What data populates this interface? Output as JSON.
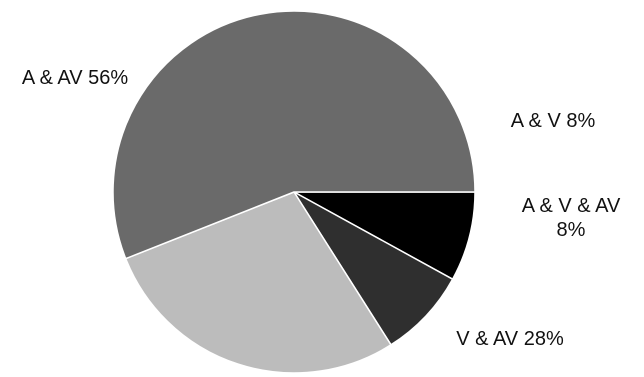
{
  "chart_data": {
    "type": "pie",
    "categories": [
      "A & V",
      "A & V & AV",
      "V & AV",
      "A & AV"
    ],
    "values": [
      8,
      8,
      28,
      56
    ],
    "labels": [
      [
        "A & V 8%"
      ],
      [
        "A & V & AV",
        "8%"
      ],
      [
        "V & AV 28%"
      ],
      [
        "A & AV 56%"
      ]
    ],
    "colors": [
      "#000000",
      "#2f2f2f",
      "#bcbcbc",
      "#6a6a6a"
    ],
    "start_angle_deg": 0,
    "direction": "clockwise"
  }
}
